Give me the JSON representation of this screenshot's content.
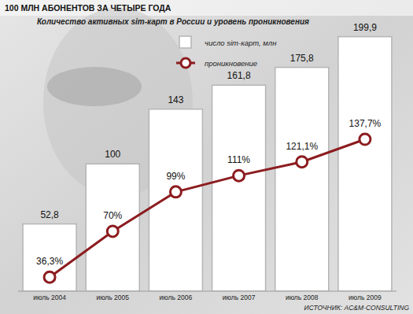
{
  "chart_data": {
    "type": "bar",
    "title": "100 МЛН АБОНЕНТОВ ЗА ЧЕТЫРЕ ГОДА",
    "subtitle": "Количество активных sim-карт в России и уровень проникновения",
    "source": "ИСТОЧНИК: AC&M-CONSULTING",
    "categories": [
      "июль 2004",
      "июль 2005",
      "июль 2006",
      "июль 2007",
      "июль 2008",
      "июль 2009"
    ],
    "series": [
      {
        "name": "число sim-карт, млн",
        "type": "bar",
        "color": "#ffffff",
        "values": [
          52.8,
          100,
          143,
          161.8,
          175.8,
          199.9
        ],
        "value_labels": [
          "52,8",
          "100",
          "143",
          "161,8",
          "175,8",
          "199,9"
        ]
      },
      {
        "name": "проникновение",
        "type": "line",
        "axis": "y2",
        "color": "#8c1c1f",
        "marker": "circle",
        "values": [
          36.3,
          70,
          99,
          111,
          121.1,
          137.7
        ],
        "value_labels": [
          "36,3%",
          "70%",
          "99%",
          "111%",
          "121,1%",
          "137,7%"
        ]
      }
    ],
    "ylim": [
      0,
      204
    ],
    "y2lim": [
      26,
      217
    ],
    "tick_labels": "x",
    "data_labels": true,
    "legend": "top"
  }
}
